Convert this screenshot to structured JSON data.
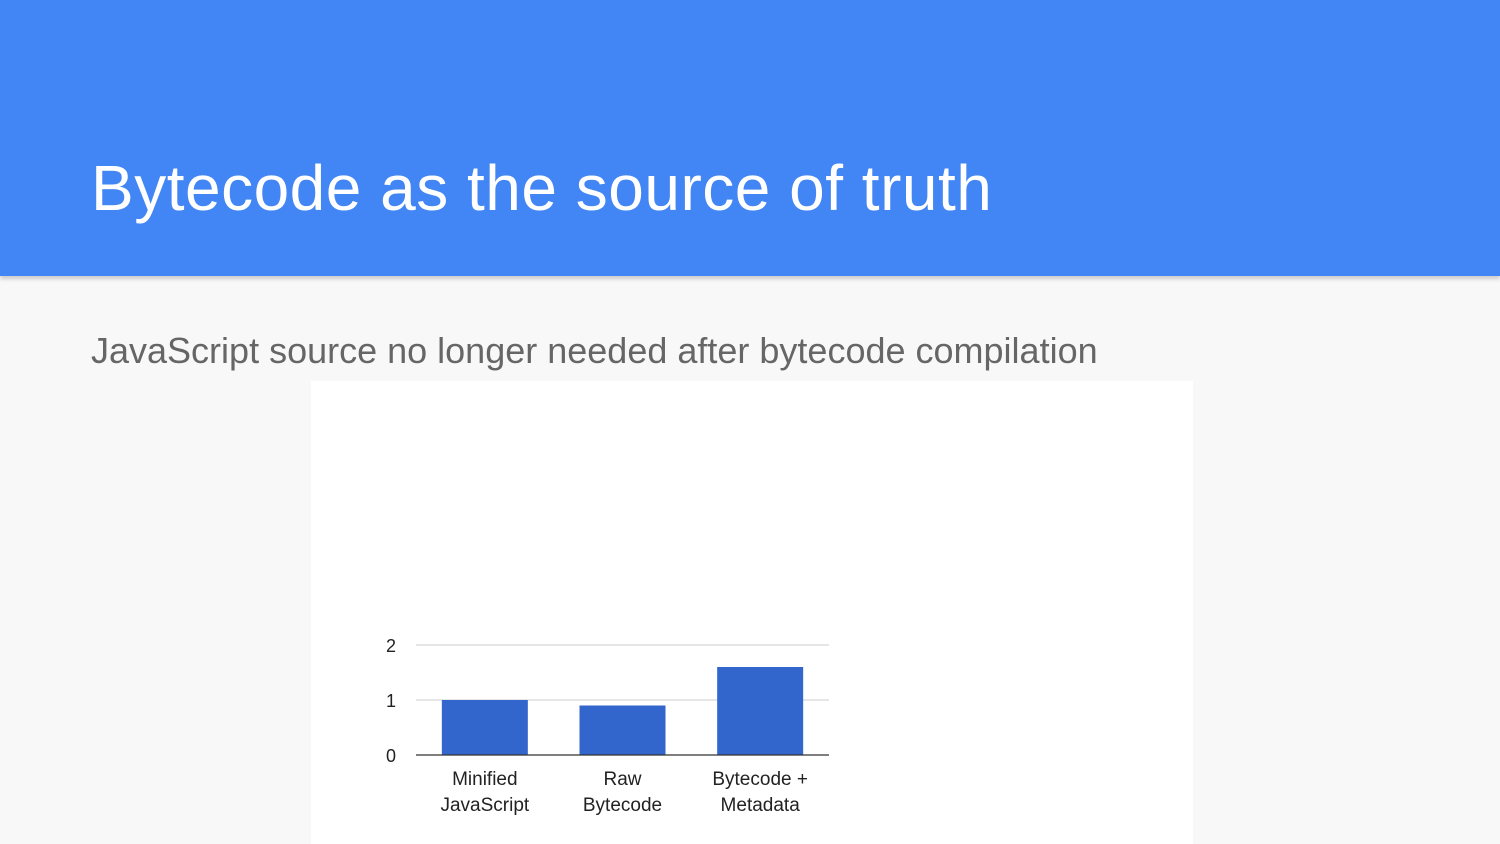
{
  "slide": {
    "title": "Bytecode as the source of truth",
    "subtitle": "JavaScript source no longer needed after bytecode compilation"
  },
  "colors": {
    "header": "#4285f4",
    "bar": "#3366cc",
    "background": "#f8f8f8"
  },
  "chart_data": {
    "type": "bar",
    "categories": [
      [
        "Minified",
        "JavaScript"
      ],
      [
        "Raw",
        "Bytecode"
      ],
      [
        "Bytecode +",
        "Metadata"
      ]
    ],
    "values": [
      1.0,
      0.9,
      1.6
    ],
    "yticks": [
      0,
      1,
      2
    ],
    "ylim": [
      0,
      2
    ],
    "title": "",
    "xlabel": "",
    "ylabel": "",
    "grid": true,
    "legend": "none"
  }
}
